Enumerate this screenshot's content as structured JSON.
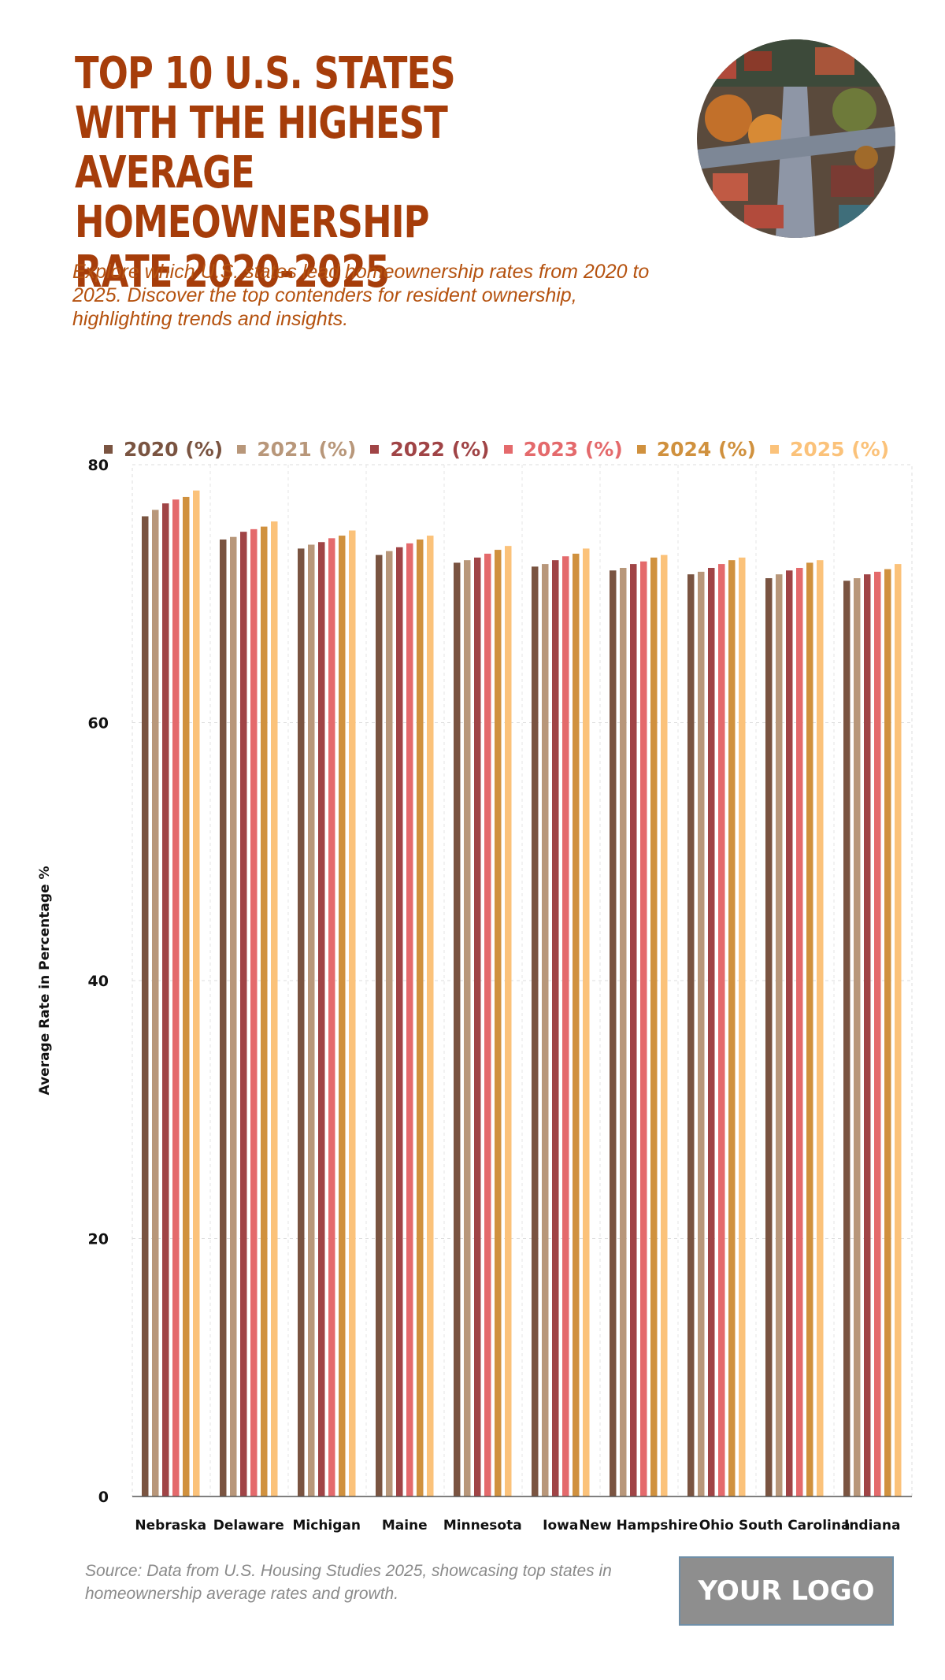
{
  "header": {
    "title": "TOP 10 U.S. STATES WITH THE HIGHEST AVERAGE HOMEOWNERSHIP RATE 2020-2025",
    "subtitle": "Explore which U.S. states lead homeownership rates from 2020 to 2025. Discover the top contenders for resident ownership, highlighting trends and insights."
  },
  "footer": {
    "source": "Source: Data from U.S. Housing Studies 2025, showcasing top states in homeownership average rates and growth.",
    "logo_text": "YOUR LOGO"
  },
  "colors": {
    "title": "#a63d0a",
    "series": [
      "#7a5441",
      "#b8977a",
      "#a04446",
      "#e46a6c",
      "#d0913e",
      "#fbc27a"
    ]
  },
  "chart_data": {
    "type": "bar",
    "title": "TOP 10 U.S. STATES WITH THE HIGHEST AVERAGE HOMEOWNERSHIP RATE 2020-2025",
    "xlabel": "",
    "ylabel": "Average Rate in Percentage %",
    "ylim": [
      0,
      80
    ],
    "yticks": [
      0,
      20,
      40,
      60,
      80
    ],
    "grid": true,
    "legend_position": "top",
    "categories": [
      "Nebraska",
      "Delaware",
      "Michigan",
      "Maine",
      "Minnesota",
      "Iowa",
      "New Hampshire",
      "Ohio",
      "South Carolina",
      "Indiana"
    ],
    "series": [
      {
        "name": "2020 (%)",
        "values": [
          76.0,
          74.2,
          73.5,
          73.0,
          72.4,
          72.1,
          71.8,
          71.5,
          71.2,
          71.0
        ]
      },
      {
        "name": "2021 (%)",
        "values": [
          76.5,
          74.4,
          73.8,
          73.3,
          72.6,
          72.3,
          72.0,
          71.7,
          71.5,
          71.2
        ]
      },
      {
        "name": "2022 (%)",
        "values": [
          77.0,
          74.8,
          74.0,
          73.6,
          72.8,
          72.6,
          72.3,
          72.0,
          71.8,
          71.5
        ]
      },
      {
        "name": "2023 (%)",
        "values": [
          77.3,
          75.0,
          74.3,
          73.9,
          73.1,
          72.9,
          72.5,
          72.3,
          72.0,
          71.7
        ]
      },
      {
        "name": "2024 (%)",
        "values": [
          77.5,
          75.2,
          74.5,
          74.2,
          73.4,
          73.1,
          72.8,
          72.6,
          72.4,
          71.9
        ]
      },
      {
        "name": "2025 (%)",
        "values": [
          78.0,
          75.6,
          74.9,
          74.5,
          73.7,
          73.5,
          73.0,
          72.8,
          72.6,
          72.3
        ]
      }
    ]
  }
}
